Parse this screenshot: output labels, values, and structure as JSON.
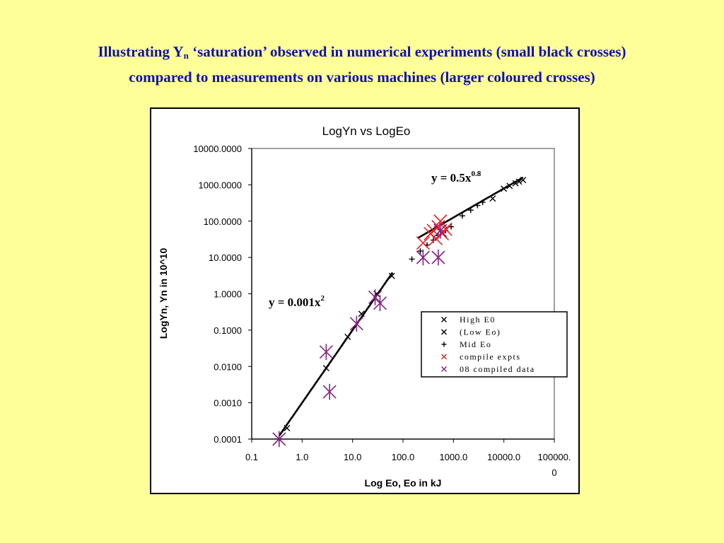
{
  "slide": {
    "title_line1_a": "Illustrating Y",
    "title_line1_sub": "n",
    "title_line1_b": " ‘saturation’ observed in numerical experiments (small black crosses)",
    "title_line2": "compared to  measurements on various machines (larger coloured crosses)"
  },
  "colors": {
    "background": "#ffff99",
    "title": "#1111aa",
    "red": "#ee2222",
    "purple": "#882288",
    "black": "#000000"
  },
  "chart_data": {
    "type": "scatter",
    "title": "LogYn vs LogEo",
    "xlabel": "Log Eo,  Eo in kJ",
    "ylabel": "LogYn, Yn in 10^10",
    "x_scale": "log",
    "y_scale": "log",
    "xlim": [
      0.1,
      100000
    ],
    "ylim": [
      0.0001,
      10000
    ],
    "x_ticks": [
      {
        "v": 0.1,
        "label": "0.1"
      },
      {
        "v": 1,
        "label": "1.0"
      },
      {
        "v": 10,
        "label": "10.0"
      },
      {
        "v": 100,
        "label": "100.0"
      },
      {
        "v": 1000,
        "label": "1000.0"
      },
      {
        "v": 10000,
        "label": "10000.0"
      },
      {
        "v": 100000,
        "label": "100000.",
        "label2": "0"
      }
    ],
    "y_ticks": [
      {
        "v": 0.0001,
        "label": "0.0001"
      },
      {
        "v": 0.001,
        "label": "0.0010"
      },
      {
        "v": 0.01,
        "label": "0.0100"
      },
      {
        "v": 0.1,
        "label": "0.1000"
      },
      {
        "v": 1,
        "label": "1.0000"
      },
      {
        "v": 10,
        "label": "10.0000"
      },
      {
        "v": 100,
        "label": "100.0000"
      },
      {
        "v": 1000,
        "label": "1000.0000"
      },
      {
        "v": 10000,
        "label": "10000.0000"
      }
    ],
    "grid": false,
    "legend_position": "right, lower half of plot",
    "series": [
      {
        "name": "High E0",
        "marker": "x",
        "color": "#000000",
        "points": [
          [
            6000,
            420
          ],
          [
            10000,
            780
          ],
          [
            13000,
            930
          ],
          [
            17000,
            1100
          ],
          [
            20000,
            1220
          ],
          [
            24000,
            1350
          ]
        ]
      },
      {
        "name": "(Low Eo)",
        "marker": "x",
        "color": "#000000",
        "points": [
          [
            0.35,
            0.0001
          ],
          [
            3.0,
            0.009
          ],
          [
            8.0,
            0.065
          ],
          [
            15,
            0.28
          ],
          [
            30,
            1.0
          ],
          [
            60,
            3.1
          ],
          [
            0.5,
            0.0002
          ]
        ]
      },
      {
        "name": "Mid Eo",
        "marker": "+",
        "color": "#000000",
        "points": [
          [
            150,
            9
          ],
          [
            220,
            15
          ],
          [
            300,
            22
          ],
          [
            400,
            30
          ],
          [
            500,
            40
          ],
          [
            700,
            55
          ],
          [
            900,
            70
          ],
          [
            1500,
            140
          ],
          [
            2200,
            200
          ],
          [
            3000,
            270
          ],
          [
            3800,
            330
          ]
        ]
      },
      {
        "name": "compile expts",
        "marker": "x",
        "color": "#ee2222",
        "points": [
          [
            250,
            25
          ],
          [
            350,
            45
          ],
          [
            450,
            33
          ],
          [
            500,
            70
          ],
          [
            550,
            100
          ],
          [
            600,
            45
          ],
          [
            700,
            60
          ],
          [
            400,
            55
          ]
        ]
      },
      {
        "name": "08 compiled data",
        "marker": "asterisk",
        "color": "#882288",
        "points": [
          [
            0.35,
            0.0001
          ],
          [
            3.0,
            0.025
          ],
          [
            3.5,
            0.002
          ],
          [
            12,
            0.15
          ],
          [
            28,
            0.8
          ],
          [
            35,
            0.55
          ],
          [
            250,
            10
          ],
          [
            500,
            10
          ],
          [
            550,
            55
          ]
        ]
      }
    ],
    "fit_lines": [
      {
        "equation_base": "y = 0.001x",
        "exponent": "2",
        "from_x": 0.35,
        "to_x": 62,
        "k": 0.001,
        "p": 2
      },
      {
        "equation_base": "y = 0.5x",
        "exponent": "0.8",
        "from_x": 200,
        "to_x": 24000,
        "k": 0.5,
        "p": 0.8
      }
    ],
    "legend_entries": [
      "High E0",
      "(Low Eo)",
      "Mid Eo",
      "compile expts",
      "08 compiled data"
    ]
  }
}
